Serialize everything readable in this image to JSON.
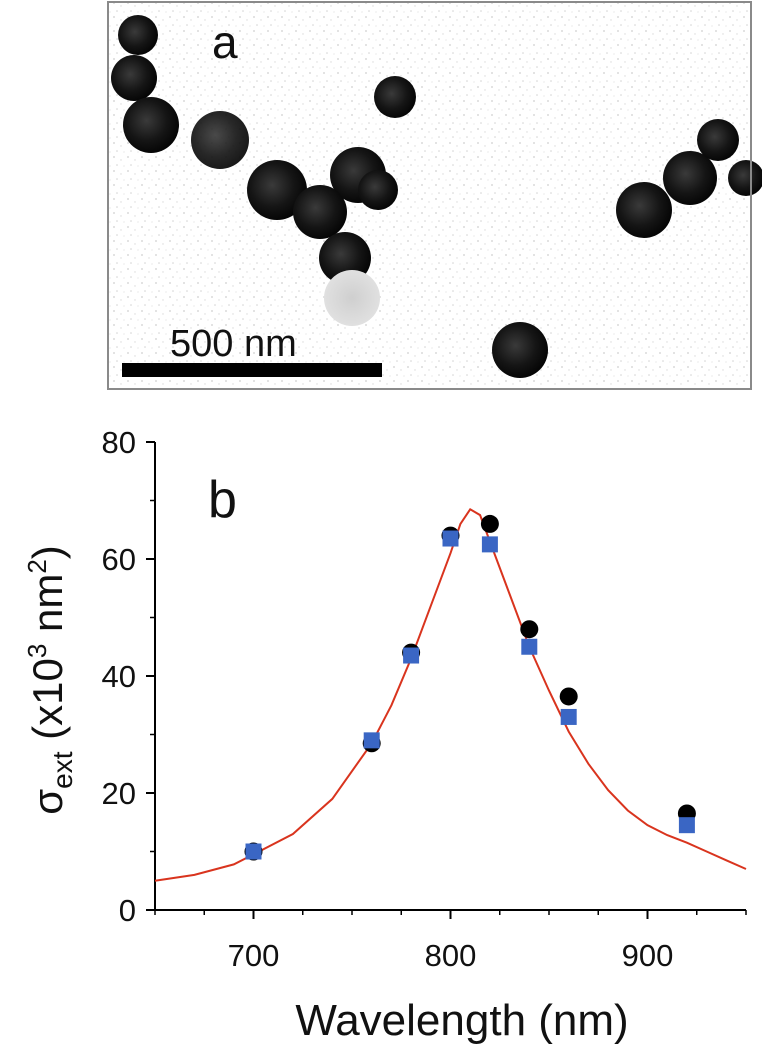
{
  "panel_a": {
    "label": "a",
    "scalebar_text": "500 nm",
    "frame_color": "#8a8a8a",
    "background_color": "#ffffff",
    "particle_color": "#141414"
  },
  "panel_b": {
    "label": "b"
  },
  "chart_data": {
    "type": "scatter",
    "xlabel": "Wavelength (nm)",
    "ylabel": {
      "symbol": "σ",
      "subscript": "ext",
      "before_sup": " (x10",
      "sup": "3",
      "middle": " nm",
      "sup2": "2",
      "after": ")"
    },
    "xlim": [
      650,
      950
    ],
    "ylim": [
      0,
      80
    ],
    "xticks": [
      700,
      800,
      900
    ],
    "yticks": [
      0,
      20,
      40,
      60,
      80
    ],
    "x_minor_step": 25,
    "y_minor_step": 10,
    "grid": false,
    "series": [
      {
        "marker": "circle",
        "color": "#000000",
        "points": [
          [
            700,
            10
          ],
          [
            760,
            28.5
          ],
          [
            780,
            44
          ],
          [
            800,
            64
          ],
          [
            820,
            66
          ],
          [
            840,
            48
          ],
          [
            860,
            36.5
          ],
          [
            920,
            16.5
          ]
        ]
      },
      {
        "marker": "square",
        "color": "#3a66c4",
        "points": [
          [
            700,
            10
          ],
          [
            760,
            29
          ],
          [
            780,
            43.5
          ],
          [
            800,
            63.5
          ],
          [
            820,
            62.5
          ],
          [
            840,
            45
          ],
          [
            860,
            33
          ],
          [
            920,
            14.5
          ]
        ]
      },
      {
        "marker": "line",
        "color": "#d9341e",
        "points": [
          [
            650,
            5
          ],
          [
            670,
            6
          ],
          [
            690,
            7.8
          ],
          [
            700,
            9.5
          ],
          [
            720,
            13
          ],
          [
            740,
            19
          ],
          [
            760,
            28.5
          ],
          [
            770,
            35
          ],
          [
            780,
            43
          ],
          [
            790,
            52
          ],
          [
            800,
            61
          ],
          [
            805,
            66
          ],
          [
            810,
            68.5
          ],
          [
            815,
            67.5
          ],
          [
            820,
            63
          ],
          [
            830,
            54
          ],
          [
            840,
            45
          ],
          [
            850,
            37.5
          ],
          [
            860,
            30.5
          ],
          [
            870,
            25
          ],
          [
            880,
            20.5
          ],
          [
            890,
            17
          ],
          [
            900,
            14.5
          ],
          [
            910,
            12.8
          ],
          [
            920,
            11.5
          ],
          [
            930,
            10
          ],
          [
            940,
            8.5
          ],
          [
            950,
            7
          ]
        ]
      }
    ]
  }
}
